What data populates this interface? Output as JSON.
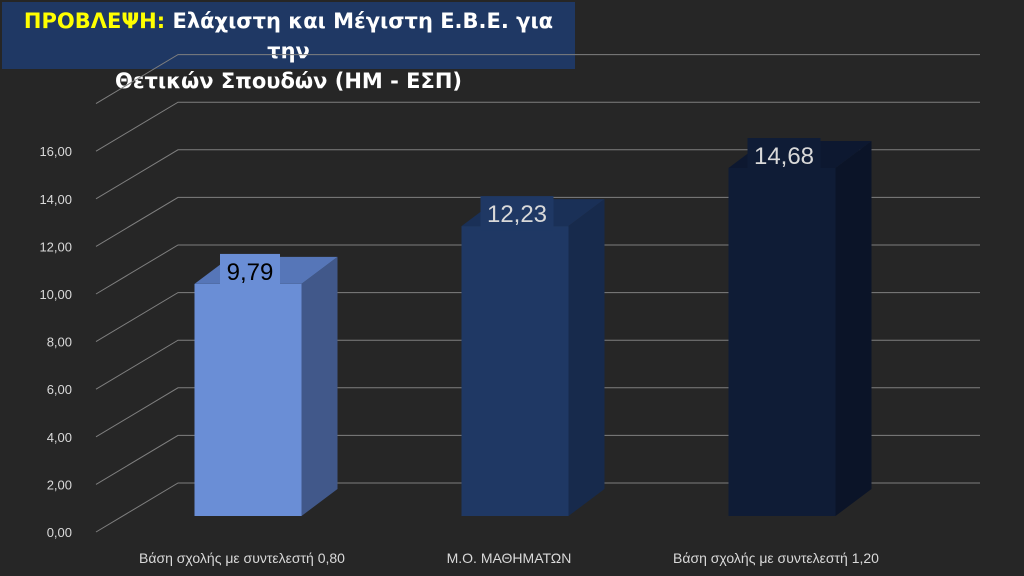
{
  "title": {
    "prefix": "ΠΡΟΒΛΕΨΗ:",
    "line1_rest": "Ελάχιστη και Μέγιστη Ε.Β.Ε. για την",
    "line2": "Θετικών Σπουδών (ΗΜ - ΕΣΠ)"
  },
  "chart_data": {
    "type": "bar",
    "title": "ΠΡΟΒΛΕΨΗ: Ελάχιστη και Μέγιστη Ε.Β.Ε. για την Θετικών Σπουδών (ΗΜ - ΕΣΠ)",
    "categories": [
      "Βάση σχολής με συντελεστή 0,80",
      "Μ.Ο. ΜΑΘΗΜΑΤΩΝ",
      "Βάση σχολής με συντελεστή 1,20"
    ],
    "values": [
      9.79,
      12.23,
      14.68
    ],
    "data_labels": [
      "9,79",
      "12,23",
      "14,68"
    ],
    "y_ticks": [
      "0,00",
      "2,00",
      "4,00",
      "6,00",
      "8,00",
      "10,00",
      "12,00",
      "14,00",
      "16,00"
    ],
    "ylim": [
      0,
      18
    ],
    "xlabel": "",
    "ylabel": "",
    "grid": true,
    "legend": "none",
    "colors": {
      "bars": [
        "#6a8ed6",
        "#1f3864",
        "#0f1c36"
      ],
      "bar_sides": [
        "#41588a",
        "#172a4c",
        "#0b1428"
      ],
      "bar_tops": [
        "#5676b8",
        "#1a3057",
        "#0d1830"
      ],
      "label_boxes": [
        "#6a8ed6",
        "#1f3864",
        "#0f1c36"
      ],
      "label_text": [
        "#000000",
        "#d9d9d9",
        "#d9d9d9"
      ],
      "grid": "#7f7f7f",
      "background": "#262626"
    }
  }
}
